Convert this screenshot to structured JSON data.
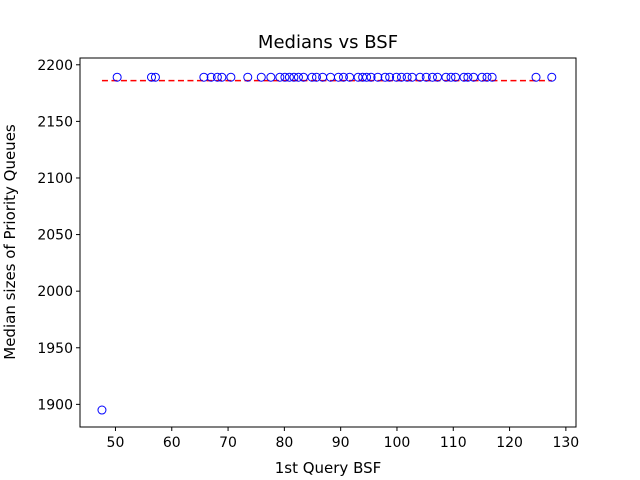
{
  "chart_data": {
    "type": "scatter",
    "title": "Medians vs BSF",
    "xlabel": "1st Query BSF",
    "ylabel": "Median sizes of Priority Queues",
    "xlim": [
      43.7,
      131.8
    ],
    "ylim": [
      1880,
      2206
    ],
    "xticks": [
      50,
      60,
      70,
      80,
      90,
      100,
      110,
      120,
      130
    ],
    "yticks": [
      1900,
      1950,
      2000,
      2050,
      2100,
      2150,
      2200
    ],
    "grid": false,
    "marker_color": "#0000ff",
    "points": [
      {
        "x": 47.6,
        "y": 1895
      },
      {
        "x": 50.3,
        "y": 2189
      },
      {
        "x": 56.4,
        "y": 2189
      },
      {
        "x": 57.1,
        "y": 2189
      },
      {
        "x": 65.7,
        "y": 2189
      },
      {
        "x": 67.0,
        "y": 2189
      },
      {
        "x": 68.1,
        "y": 2189
      },
      {
        "x": 68.9,
        "y": 2189
      },
      {
        "x": 70.5,
        "y": 2189
      },
      {
        "x": 73.5,
        "y": 2189
      },
      {
        "x": 75.9,
        "y": 2189
      },
      {
        "x": 77.6,
        "y": 2189
      },
      {
        "x": 79.2,
        "y": 2189
      },
      {
        "x": 80.1,
        "y": 2189
      },
      {
        "x": 80.9,
        "y": 2189
      },
      {
        "x": 81.7,
        "y": 2189
      },
      {
        "x": 82.5,
        "y": 2189
      },
      {
        "x": 83.4,
        "y": 2189
      },
      {
        "x": 84.9,
        "y": 2189
      },
      {
        "x": 85.7,
        "y": 2189
      },
      {
        "x": 86.8,
        "y": 2189
      },
      {
        "x": 88.2,
        "y": 2189
      },
      {
        "x": 89.6,
        "y": 2189
      },
      {
        "x": 90.5,
        "y": 2189
      },
      {
        "x": 91.6,
        "y": 2189
      },
      {
        "x": 93.1,
        "y": 2189
      },
      {
        "x": 93.9,
        "y": 2189
      },
      {
        "x": 94.6,
        "y": 2189
      },
      {
        "x": 95.4,
        "y": 2189
      },
      {
        "x": 96.6,
        "y": 2189
      },
      {
        "x": 97.9,
        "y": 2189
      },
      {
        "x": 98.7,
        "y": 2189
      },
      {
        "x": 99.9,
        "y": 2189
      },
      {
        "x": 100.8,
        "y": 2189
      },
      {
        "x": 101.8,
        "y": 2189
      },
      {
        "x": 102.7,
        "y": 2189
      },
      {
        "x": 104.1,
        "y": 2189
      },
      {
        "x": 105.2,
        "y": 2189
      },
      {
        "x": 106.3,
        "y": 2189
      },
      {
        "x": 107.2,
        "y": 2189
      },
      {
        "x": 108.7,
        "y": 2189
      },
      {
        "x": 109.6,
        "y": 2189
      },
      {
        "x": 110.4,
        "y": 2189
      },
      {
        "x": 111.9,
        "y": 2189
      },
      {
        "x": 112.6,
        "y": 2189
      },
      {
        "x": 113.6,
        "y": 2189
      },
      {
        "x": 115.1,
        "y": 2189
      },
      {
        "x": 116.0,
        "y": 2189
      },
      {
        "x": 116.9,
        "y": 2189
      },
      {
        "x": 124.7,
        "y": 2189
      },
      {
        "x": 127.5,
        "y": 2189
      }
    ],
    "reference_line": {
      "style": "dashed",
      "color": "#ff0000",
      "y": 2186,
      "x_start": 47.6,
      "x_end": 127.5
    }
  }
}
